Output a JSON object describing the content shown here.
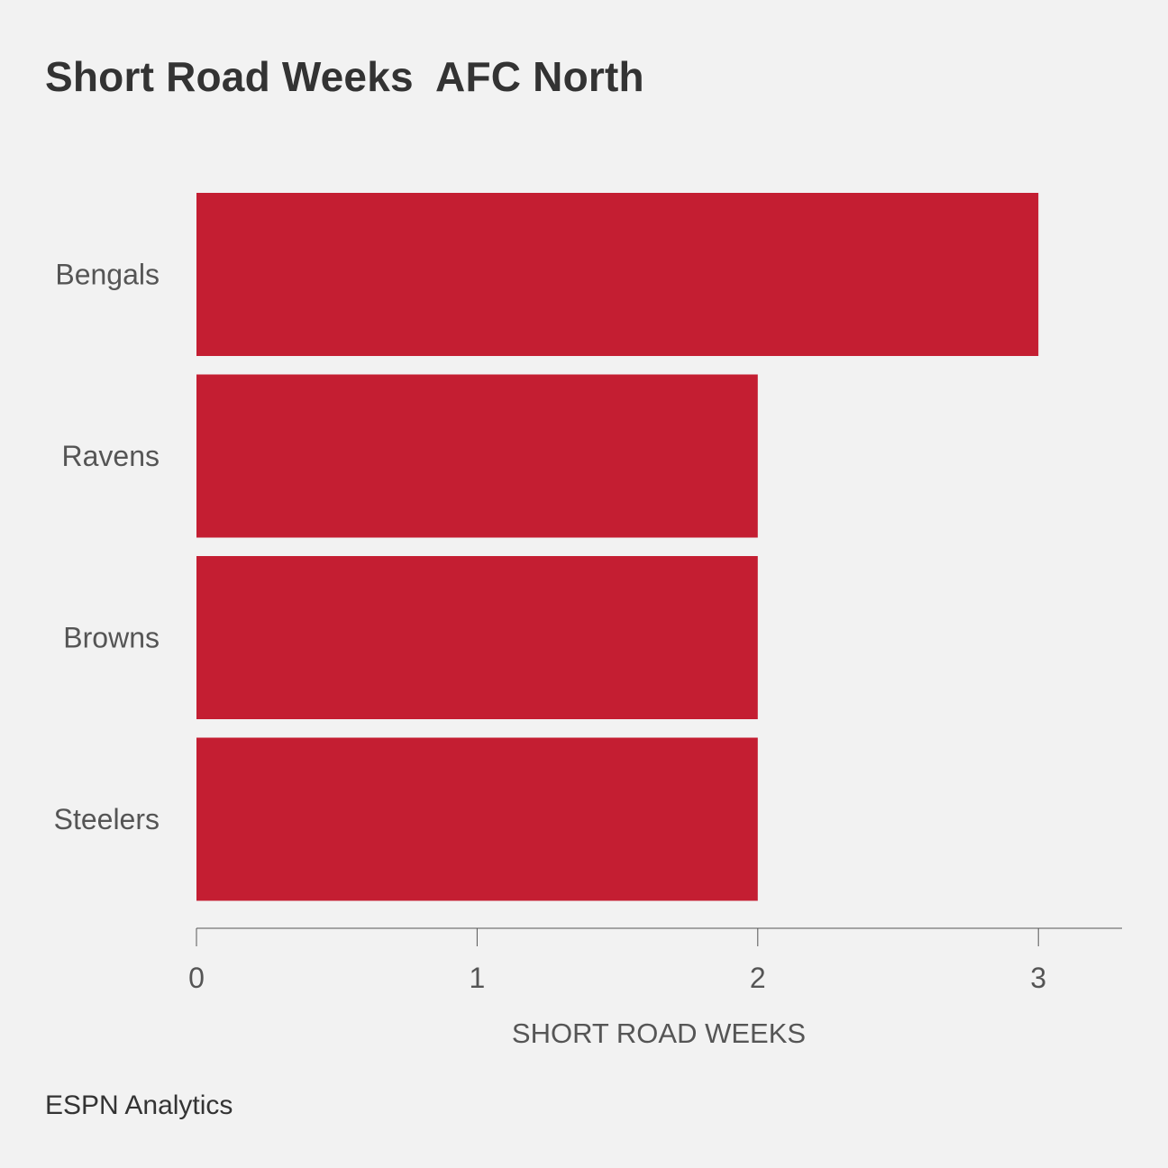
{
  "colors": {
    "background": "#f2f2f2",
    "bar": "#c41e32",
    "text": "#333333",
    "label": "#555555",
    "axis": "#555555"
  },
  "footer": {
    "source": "ESPN Analytics"
  },
  "chart_data": {
    "type": "bar",
    "orientation": "horizontal",
    "title": "Short Road Weeks  AFC North",
    "categories": [
      "Bengals",
      "Ravens",
      "Browns",
      "Steelers"
    ],
    "values": [
      3,
      2,
      2,
      2
    ],
    "xlabel": "SHORT ROAD WEEKS",
    "ylabel": "",
    "xlim": [
      0,
      3.3
    ],
    "xticks": [
      0,
      1,
      2,
      3
    ],
    "grid": false,
    "legend": "none"
  }
}
